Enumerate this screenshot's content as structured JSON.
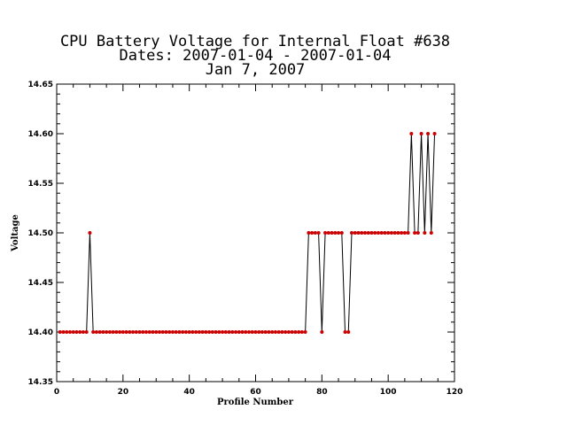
{
  "chart_data": {
    "type": "line",
    "title_lines": [
      "CPU Battery Voltage for Internal Float #638",
      "Dates:  2007-01-04 -  2007-01-04",
      "Jan  7, 2007"
    ],
    "xlabel": "Profile Number",
    "ylabel": "Voltage",
    "xlim": [
      0,
      120
    ],
    "ylim": [
      14.35,
      14.65
    ],
    "x_ticks": [
      0,
      20,
      40,
      60,
      80,
      100,
      120
    ],
    "y_ticks": [
      14.35,
      14.4,
      14.45,
      14.5,
      14.55,
      14.6,
      14.65
    ],
    "x_tick_labels": [
      "0",
      "20",
      "40",
      "60",
      "80",
      "100",
      "120"
    ],
    "y_tick_labels": [
      "14.35",
      "14.40",
      "14.45",
      "14.50",
      "14.55",
      "14.60",
      "14.65"
    ],
    "grid": false,
    "line_color": "#000000",
    "marker_color": "#cc0000",
    "series": [
      {
        "x": [
          1,
          2,
          3,
          4,
          5,
          6,
          7,
          8,
          9,
          10,
          11,
          12,
          13,
          14,
          15,
          16,
          17,
          18,
          19,
          20,
          21,
          22,
          23,
          24,
          25,
          26,
          27,
          28,
          29,
          30,
          31,
          32,
          33,
          34,
          35,
          36,
          37,
          38,
          39,
          40,
          41,
          42,
          43,
          44,
          45,
          46,
          47,
          48,
          49,
          50,
          51,
          52,
          53,
          54,
          55,
          56,
          57,
          58,
          59,
          60,
          61,
          62,
          63,
          64,
          65,
          66,
          67,
          68,
          69,
          70,
          71,
          72,
          73,
          74,
          75,
          76,
          77,
          78,
          79,
          80,
          81,
          82,
          83,
          84,
          85,
          86,
          87,
          88,
          89,
          90,
          91,
          92,
          93,
          94,
          95,
          96,
          97,
          98,
          99,
          100,
          101,
          102,
          103,
          104,
          105,
          106,
          107,
          108,
          109,
          110,
          111,
          112,
          113,
          114
        ],
        "values": [
          14.4,
          14.4,
          14.4,
          14.4,
          14.4,
          14.4,
          14.4,
          14.4,
          14.4,
          14.5,
          14.4,
          14.4,
          14.4,
          14.4,
          14.4,
          14.4,
          14.4,
          14.4,
          14.4,
          14.4,
          14.4,
          14.4,
          14.4,
          14.4,
          14.4,
          14.4,
          14.4,
          14.4,
          14.4,
          14.4,
          14.4,
          14.4,
          14.4,
          14.4,
          14.4,
          14.4,
          14.4,
          14.4,
          14.4,
          14.4,
          14.4,
          14.4,
          14.4,
          14.4,
          14.4,
          14.4,
          14.4,
          14.4,
          14.4,
          14.4,
          14.4,
          14.4,
          14.4,
          14.4,
          14.4,
          14.4,
          14.4,
          14.4,
          14.4,
          14.4,
          14.4,
          14.4,
          14.4,
          14.4,
          14.4,
          14.4,
          14.4,
          14.4,
          14.4,
          14.4,
          14.4,
          14.4,
          14.4,
          14.4,
          14.4,
          14.5,
          14.5,
          14.5,
          14.5,
          14.4,
          14.5,
          14.5,
          14.5,
          14.5,
          14.5,
          14.5,
          14.4,
          14.4,
          14.5,
          14.5,
          14.5,
          14.5,
          14.5,
          14.5,
          14.5,
          14.5,
          14.5,
          14.5,
          14.5,
          14.5,
          14.5,
          14.5,
          14.5,
          14.5,
          14.5,
          14.5,
          14.6,
          14.5,
          14.5,
          14.6,
          14.5,
          14.6,
          14.5,
          14.6
        ]
      }
    ]
  }
}
